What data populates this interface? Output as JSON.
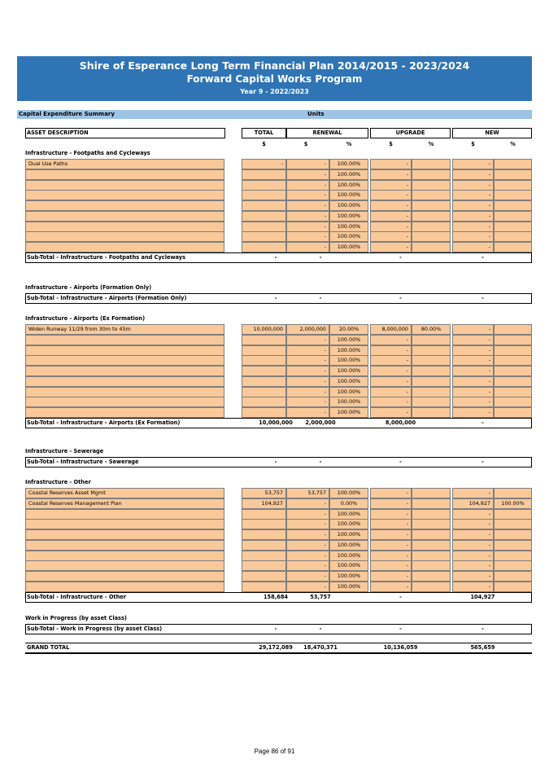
{
  "header": {
    "title": "Shire of Esperance Long Term Financial Plan 2014/2015 - 2023/2024",
    "subtitle": "Forward Capital Works Program",
    "year": "Year 9 - 2022/2023"
  },
  "summary": {
    "label": "Capital Expenditure Summary",
    "units": "Units"
  },
  "columns": {
    "asset": "ASSET DESCRIPTION",
    "total": "TOTAL",
    "renewal": "RENEWAL",
    "upgrade": "UPGRADE",
    "new": "NEW",
    "dollar": "$",
    "pct": "%"
  },
  "sections": [
    {
      "title": "Infrastructure - Footpaths and Cycleways",
      "rows": [
        {
          "desc": "Dual Use Paths",
          "total": "-",
          "renewal": "-",
          "renewal_pct": "100.00%",
          "upgrade": "-",
          "upgrade_pct": "",
          "new": "-",
          "new_pct": ""
        },
        {
          "desc": "",
          "total": "",
          "renewal": "-",
          "renewal_pct": "100.00%",
          "upgrade": "-",
          "upgrade_pct": "",
          "new": "-",
          "new_pct": ""
        },
        {
          "desc": "",
          "total": "",
          "renewal": "-",
          "renewal_pct": "100.00%",
          "upgrade": "-",
          "upgrade_pct": "",
          "new": "-",
          "new_pct": ""
        },
        {
          "desc": "",
          "total": "",
          "renewal": "-",
          "renewal_pct": "100.00%",
          "upgrade": "-",
          "upgrade_pct": "",
          "new": "-",
          "new_pct": ""
        },
        {
          "desc": "",
          "total": "",
          "renewal": "-",
          "renewal_pct": "100.00%",
          "upgrade": "-",
          "upgrade_pct": "",
          "new": "-",
          "new_pct": ""
        },
        {
          "desc": "",
          "total": "",
          "renewal": "-",
          "renewal_pct": "100.00%",
          "upgrade": "-",
          "upgrade_pct": "",
          "new": "-",
          "new_pct": ""
        },
        {
          "desc": "",
          "total": "",
          "renewal": "-",
          "renewal_pct": "100.00%",
          "upgrade": "-",
          "upgrade_pct": "",
          "new": "-",
          "new_pct": ""
        },
        {
          "desc": "",
          "total": "",
          "renewal": "-",
          "renewal_pct": "100.00%",
          "upgrade": "-",
          "upgrade_pct": "",
          "new": "-",
          "new_pct": ""
        },
        {
          "desc": "",
          "total": "",
          "renewal": "-",
          "renewal_pct": "100.00%",
          "upgrade": "-",
          "upgrade_pct": "",
          "new": "-",
          "new_pct": ""
        }
      ],
      "subtotal": {
        "label": "Sub-Total -  Infrastructure - Footpaths and Cycleways",
        "total": "-",
        "renewal": "-",
        "upgrade": "-",
        "new": "-"
      }
    },
    {
      "title": "Infrastructure - Airports (Formation Only)",
      "rows": [],
      "subtotal": {
        "label": "Sub-Total -  Infrastructure - Airports (Formation Only)",
        "total": "-",
        "renewal": "-",
        "upgrade": "-",
        "new": "-"
      }
    },
    {
      "title": "Infrastructure - Airports (Ex Formation)",
      "rows": [
        {
          "desc": "Widen Runway 11/29 from 30m to 45m",
          "total": "10,000,000",
          "renewal": "2,000,000",
          "renewal_pct": "20.00%",
          "upgrade": "8,000,000",
          "upgrade_pct": "80.00%",
          "new": "-",
          "new_pct": ""
        },
        {
          "desc": "",
          "total": "",
          "renewal": "-",
          "renewal_pct": "100.00%",
          "upgrade": "-",
          "upgrade_pct": "",
          "new": "-",
          "new_pct": ""
        },
        {
          "desc": "",
          "total": "",
          "renewal": "-",
          "renewal_pct": "100.00%",
          "upgrade": "-",
          "upgrade_pct": "",
          "new": "-",
          "new_pct": ""
        },
        {
          "desc": "",
          "total": "",
          "renewal": "-",
          "renewal_pct": "100.00%",
          "upgrade": "-",
          "upgrade_pct": "",
          "new": "-",
          "new_pct": ""
        },
        {
          "desc": "",
          "total": "",
          "renewal": "-",
          "renewal_pct": "100.00%",
          "upgrade": "-",
          "upgrade_pct": "",
          "new": "-",
          "new_pct": ""
        },
        {
          "desc": "",
          "total": "",
          "renewal": "-",
          "renewal_pct": "100.00%",
          "upgrade": "-",
          "upgrade_pct": "",
          "new": "-",
          "new_pct": ""
        },
        {
          "desc": "",
          "total": "",
          "renewal": "-",
          "renewal_pct": "100.00%",
          "upgrade": "-",
          "upgrade_pct": "",
          "new": "-",
          "new_pct": ""
        },
        {
          "desc": "",
          "total": "",
          "renewal": "-",
          "renewal_pct": "100.00%",
          "upgrade": "-",
          "upgrade_pct": "",
          "new": "-",
          "new_pct": ""
        },
        {
          "desc": "",
          "total": "",
          "renewal": "-",
          "renewal_pct": "100.00%",
          "upgrade": "-",
          "upgrade_pct": "",
          "new": "-",
          "new_pct": ""
        }
      ],
      "subtotal": {
        "label": "Sub-Total -  Infrastructure - Airports (Ex Formation)",
        "total": "10,000,000",
        "renewal": "2,000,000",
        "upgrade": "8,000,000",
        "new": "-"
      }
    },
    {
      "title": "Infrastructure - Sewerage",
      "rows": [],
      "subtotal": {
        "label": "Sub-Total -  Infrastructure - Sewerage",
        "total": "-",
        "renewal": "-",
        "upgrade": "-",
        "new": "-"
      }
    },
    {
      "title": "Infrastructure - Other",
      "rows": [
        {
          "desc": "Coastal Reserves Asset Mgmt",
          "total": "53,757",
          "renewal": "53,757",
          "renewal_pct": "100.00%",
          "upgrade": "-",
          "upgrade_pct": "",
          "new": "-",
          "new_pct": ""
        },
        {
          "desc": "Coastal Reserves Management Plan",
          "total": "104,927",
          "renewal": "-",
          "renewal_pct": "0.00%",
          "upgrade": "-",
          "upgrade_pct": "",
          "new": "104,927",
          "new_pct": "100.00%"
        },
        {
          "desc": "",
          "total": "",
          "renewal": "-",
          "renewal_pct": "100.00%",
          "upgrade": "-",
          "upgrade_pct": "",
          "new": "-",
          "new_pct": ""
        },
        {
          "desc": "",
          "total": "",
          "renewal": "-",
          "renewal_pct": "100.00%",
          "upgrade": "-",
          "upgrade_pct": "",
          "new": "-",
          "new_pct": ""
        },
        {
          "desc": "",
          "total": "",
          "renewal": "-",
          "renewal_pct": "100.00%",
          "upgrade": "-",
          "upgrade_pct": "",
          "new": "-",
          "new_pct": ""
        },
        {
          "desc": "",
          "total": "",
          "renewal": "-",
          "renewal_pct": "100.00%",
          "upgrade": "-",
          "upgrade_pct": "",
          "new": "-",
          "new_pct": ""
        },
        {
          "desc": "",
          "total": "",
          "renewal": "-",
          "renewal_pct": "100.00%",
          "upgrade": "-",
          "upgrade_pct": "",
          "new": "-",
          "new_pct": ""
        },
        {
          "desc": "",
          "total": "",
          "renewal": "-",
          "renewal_pct": "100.00%",
          "upgrade": "-",
          "upgrade_pct": "",
          "new": "-",
          "new_pct": ""
        },
        {
          "desc": "",
          "total": "",
          "renewal": "-",
          "renewal_pct": "100.00%",
          "upgrade": "-",
          "upgrade_pct": "",
          "new": "-",
          "new_pct": ""
        },
        {
          "desc": "",
          "total": "",
          "renewal": "-",
          "renewal_pct": "100.00%",
          "upgrade": "-",
          "upgrade_pct": "",
          "new": "-",
          "new_pct": ""
        }
      ],
      "subtotal": {
        "label": "Sub-Total -  Infrastructure - Other",
        "total": "158,684",
        "renewal": "53,757",
        "upgrade": "-",
        "new": "104,927"
      }
    },
    {
      "title": "Work in Progress (by asset Class)",
      "rows": [],
      "subtotal": {
        "label": "Sub-Total -  Work in Progress (by asset Class)",
        "total": "-",
        "renewal": "-",
        "upgrade": "-",
        "new": "-"
      }
    }
  ],
  "grand_total": {
    "label": "GRAND TOTAL",
    "total": "29,172,089",
    "renewal": "18,470,371",
    "upgrade": "10,136,059",
    "new": "565,659"
  },
  "footer": "Page 86 of 91",
  "colors": {
    "banner": "#2f75b5",
    "summary_bar": "#9dc3e6",
    "input_cell": "#f9c99a"
  }
}
